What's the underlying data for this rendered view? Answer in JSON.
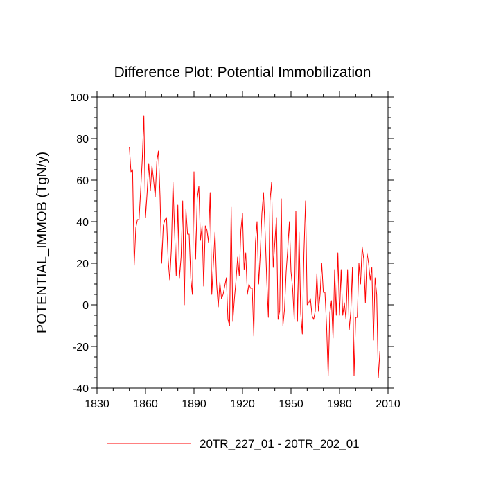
{
  "chart_data": {
    "type": "line",
    "title": "Difference Plot: Potential Immobilization",
    "xlabel": "",
    "ylabel": "POTENTIAL_IMMOB  (TgN/y)",
    "xlim": [
      1830,
      2010
    ],
    "ylim": [
      -40,
      100
    ],
    "xticks": [
      1830,
      1860,
      1890,
      1920,
      1950,
      1980,
      2010
    ],
    "yticks": [
      -40,
      -20,
      0,
      20,
      40,
      60,
      80,
      100
    ],
    "grid": false,
    "legend_position": "bottom-center",
    "series": [
      {
        "name": "20TR_227_01 - 20TR_202_01",
        "color": "#ff0000",
        "x": [
          1850,
          1851,
          1852,
          1853,
          1854,
          1855,
          1856,
          1857,
          1858,
          1859,
          1860,
          1861,
          1862,
          1863,
          1864,
          1865,
          1866,
          1867,
          1868,
          1869,
          1870,
          1871,
          1872,
          1873,
          1874,
          1875,
          1876,
          1877,
          1878,
          1879,
          1880,
          1881,
          1882,
          1883,
          1884,
          1885,
          1886,
          1887,
          1888,
          1889,
          1890,
          1891,
          1892,
          1893,
          1894,
          1895,
          1896,
          1897,
          1898,
          1899,
          1900,
          1901,
          1902,
          1903,
          1904,
          1905,
          1906,
          1907,
          1908,
          1909,
          1910,
          1911,
          1912,
          1913,
          1914,
          1915,
          1916,
          1917,
          1918,
          1919,
          1920,
          1921,
          1922,
          1923,
          1924,
          1925,
          1926,
          1927,
          1928,
          1929,
          1930,
          1931,
          1932,
          1933,
          1934,
          1935,
          1936,
          1937,
          1938,
          1939,
          1940,
          1941,
          1942,
          1943,
          1944,
          1945,
          1946,
          1947,
          1948,
          1949,
          1950,
          1951,
          1952,
          1953,
          1954,
          1955,
          1956,
          1957,
          1958,
          1959,
          1960,
          1961,
          1962,
          1963,
          1964,
          1965,
          1966,
          1967,
          1968,
          1969,
          1970,
          1971,
          1972,
          1973,
          1974,
          1975,
          1976,
          1977,
          1978,
          1979,
          1980,
          1981,
          1982,
          1983,
          1984,
          1985,
          1986,
          1987,
          1988,
          1989,
          1990,
          1991,
          1992,
          1993,
          1994,
          1995,
          1996,
          1997,
          1998,
          1999,
          2000,
          2001,
          2002,
          2003,
          2004,
          2005
        ],
        "values": [
          76,
          64,
          65,
          19,
          37,
          41,
          41,
          55,
          70,
          91,
          42,
          54,
          68,
          55,
          67,
          60,
          52,
          69,
          74,
          52,
          20,
          38,
          41,
          42,
          22,
          12,
          27,
          59,
          35,
          14,
          48,
          13,
          23,
          50,
          0,
          46,
          34,
          34,
          13,
          5,
          64,
          22,
          51,
          57,
          31,
          38,
          9,
          38,
          36,
          30,
          54,
          5,
          20,
          35,
          10,
          -1,
          11,
          3,
          5,
          9,
          13,
          -7,
          -10,
          47,
          -8,
          3,
          12,
          23,
          14,
          36,
          44,
          17,
          25,
          5,
          10,
          8,
          8,
          -15,
          30,
          40,
          10,
          25,
          44,
          54,
          35,
          12,
          -6,
          50,
          59,
          18,
          30,
          42,
          -7,
          -3,
          51,
          -10,
          -2,
          16,
          27,
          40,
          16,
          8,
          -7,
          45,
          -8,
          35,
          -4,
          -14,
          25,
          50,
          0,
          1,
          3,
          -5,
          -7,
          -3,
          15,
          -3,
          5,
          20,
          6,
          6,
          -10,
          -34,
          -4,
          2,
          -16,
          17,
          -5,
          25,
          -5,
          17,
          -5,
          1,
          -7,
          17,
          -12,
          -3,
          18,
          -34,
          -6,
          -6,
          20,
          10,
          28,
          22,
          1,
          25,
          20,
          12,
          18,
          -17,
          13,
          5,
          -35,
          -22
        ]
      }
    ]
  }
}
